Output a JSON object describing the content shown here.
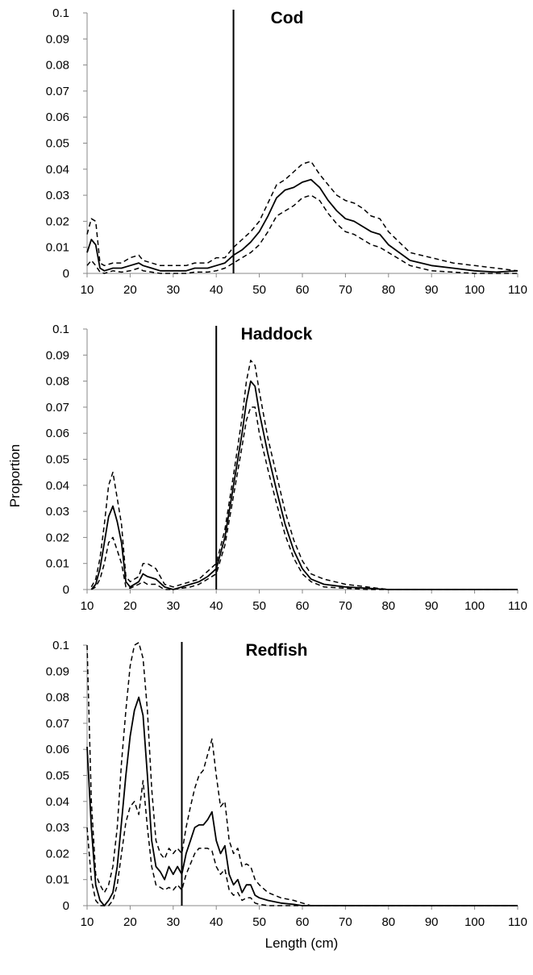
{
  "ylabel": "Proportion",
  "xlabel": "Length (cm)",
  "chart_data": [
    {
      "type": "line",
      "title": "Cod",
      "xlim": [
        10,
        110
      ],
      "ylim": [
        0,
        0.1
      ],
      "xticks": [
        "10",
        "20",
        "30",
        "40",
        "50",
        "60",
        "70",
        "80",
        "90",
        "100",
        "110"
      ],
      "yticks": [
        "0",
        "0.01",
        "0.02",
        "0.03",
        "0.04",
        "0.05",
        "0.06",
        "0.07",
        "0.08",
        "0.09",
        "0.1"
      ],
      "vline_x": 44,
      "series": [
        {
          "style": "solid",
          "x": [
            10,
            11,
            12,
            13,
            14,
            16,
            18,
            20,
            22,
            23,
            25,
            27,
            30,
            33,
            35,
            38,
            40,
            42,
            44,
            46,
            48,
            50,
            52,
            54,
            56,
            58,
            60,
            62,
            64,
            66,
            68,
            70,
            72,
            74,
            76,
            78,
            80,
            85,
            90,
            95,
            100,
            105,
            110
          ],
          "y": [
            0.008,
            0.013,
            0.011,
            0.002,
            0.001,
            0.002,
            0.002,
            0.003,
            0.004,
            0.003,
            0.002,
            0.001,
            0.001,
            0.001,
            0.002,
            0.002,
            0.003,
            0.004,
            0.007,
            0.009,
            0.012,
            0.016,
            0.022,
            0.029,
            0.032,
            0.033,
            0.035,
            0.036,
            0.033,
            0.028,
            0.024,
            0.021,
            0.02,
            0.018,
            0.016,
            0.015,
            0.011,
            0.005,
            0.003,
            0.002,
            0.001,
            0.0005,
            0.001
          ]
        },
        {
          "style": "dashed",
          "x": [
            10,
            11,
            12,
            13,
            14,
            16,
            18,
            20,
            22,
            23,
            25,
            27,
            30,
            33,
            35,
            38,
            40,
            42,
            44,
            46,
            48,
            50,
            52,
            54,
            56,
            58,
            60,
            62,
            64,
            66,
            68,
            70,
            72,
            74,
            76,
            78,
            80,
            85,
            90,
            95,
            100,
            105,
            110
          ],
          "y": [
            0.015,
            0.021,
            0.02,
            0.004,
            0.003,
            0.004,
            0.004,
            0.006,
            0.007,
            0.005,
            0.004,
            0.003,
            0.003,
            0.003,
            0.004,
            0.004,
            0.006,
            0.006,
            0.01,
            0.013,
            0.016,
            0.02,
            0.027,
            0.034,
            0.036,
            0.039,
            0.042,
            0.043,
            0.038,
            0.034,
            0.03,
            0.028,
            0.027,
            0.025,
            0.022,
            0.021,
            0.016,
            0.008,
            0.006,
            0.004,
            0.003,
            0.002,
            0.001
          ]
        },
        {
          "style": "dashed",
          "x": [
            10,
            11,
            12,
            13,
            14,
            16,
            18,
            20,
            22,
            23,
            25,
            27,
            30,
            33,
            35,
            38,
            40,
            42,
            44,
            46,
            48,
            50,
            52,
            54,
            56,
            58,
            60,
            62,
            64,
            66,
            68,
            70,
            72,
            74,
            76,
            78,
            80,
            85,
            90,
            95,
            100,
            105,
            110
          ],
          "y": [
            0.003,
            0.005,
            0.003,
            0.0005,
            0.0,
            0.001,
            0.0005,
            0.001,
            0.002,
            0.001,
            0.0005,
            0.0,
            0.0,
            0.0,
            0.0005,
            0.0005,
            0.001,
            0.002,
            0.004,
            0.006,
            0.008,
            0.011,
            0.016,
            0.022,
            0.024,
            0.026,
            0.029,
            0.03,
            0.028,
            0.023,
            0.019,
            0.016,
            0.015,
            0.013,
            0.011,
            0.01,
            0.008,
            0.003,
            0.001,
            0.0005,
            0.0,
            0.0,
            0.0
          ]
        }
      ]
    },
    {
      "type": "line",
      "title": "Haddock",
      "xlim": [
        10,
        110
      ],
      "ylim": [
        0,
        0.1
      ],
      "xticks": [
        "10",
        "20",
        "30",
        "40",
        "50",
        "60",
        "70",
        "80",
        "90",
        "100",
        "110"
      ],
      "yticks": [
        "0",
        "0.01",
        "0.02",
        "0.03",
        "0.04",
        "0.05",
        "0.06",
        "0.07",
        "0.08",
        "0.09",
        "0.1"
      ],
      "vline_x": 40,
      "series": [
        {
          "style": "solid",
          "x": [
            11,
            12,
            13,
            14,
            15,
            16,
            17,
            18,
            19,
            20,
            22,
            23,
            24,
            26,
            28,
            30,
            32,
            34,
            36,
            38,
            40,
            42,
            44,
            46,
            47,
            48,
            49,
            50,
            52,
            54,
            56,
            58,
            60,
            62,
            65,
            70,
            75,
            80,
            90,
            100,
            110
          ],
          "y": [
            0.0,
            0.002,
            0.008,
            0.018,
            0.028,
            0.032,
            0.026,
            0.018,
            0.003,
            0.001,
            0.003,
            0.006,
            0.005,
            0.004,
            0.001,
            0.0,
            0.001,
            0.002,
            0.003,
            0.005,
            0.008,
            0.02,
            0.04,
            0.06,
            0.072,
            0.08,
            0.078,
            0.068,
            0.052,
            0.038,
            0.025,
            0.015,
            0.008,
            0.004,
            0.002,
            0.001,
            0.0005,
            0.0,
            0.0,
            0.0,
            0.0
          ]
        },
        {
          "style": "dashed",
          "x": [
            11,
            12,
            13,
            14,
            15,
            16,
            17,
            18,
            19,
            20,
            22,
            23,
            24,
            26,
            28,
            30,
            32,
            34,
            36,
            38,
            40,
            42,
            44,
            46,
            47,
            48,
            49,
            50,
            52,
            54,
            56,
            58,
            60,
            62,
            65,
            70,
            75,
            80,
            90,
            100,
            110
          ],
          "y": [
            0.001,
            0.004,
            0.012,
            0.025,
            0.04,
            0.045,
            0.035,
            0.025,
            0.005,
            0.003,
            0.005,
            0.01,
            0.01,
            0.008,
            0.002,
            0.001,
            0.002,
            0.003,
            0.004,
            0.007,
            0.01,
            0.023,
            0.044,
            0.066,
            0.08,
            0.088,
            0.086,
            0.076,
            0.058,
            0.044,
            0.03,
            0.019,
            0.011,
            0.006,
            0.004,
            0.002,
            0.001,
            0.0,
            0.0,
            0.0,
            0.0
          ]
        },
        {
          "style": "dashed",
          "x": [
            11,
            12,
            13,
            14,
            15,
            16,
            17,
            18,
            19,
            20,
            22,
            23,
            24,
            26,
            28,
            30,
            32,
            34,
            36,
            38,
            40,
            42,
            44,
            46,
            47,
            48,
            49,
            50,
            52,
            54,
            56,
            58,
            60,
            62,
            65,
            70,
            75,
            80,
            90,
            100,
            110
          ],
          "y": [
            0.0,
            0.001,
            0.004,
            0.01,
            0.018,
            0.02,
            0.015,
            0.01,
            0.001,
            0.0005,
            0.002,
            0.003,
            0.002,
            0.002,
            0.0,
            0.0,
            0.0005,
            0.001,
            0.002,
            0.004,
            0.006,
            0.017,
            0.036,
            0.055,
            0.065,
            0.07,
            0.07,
            0.06,
            0.046,
            0.033,
            0.021,
            0.012,
            0.006,
            0.003,
            0.001,
            0.0005,
            0.0,
            0.0,
            0.0,
            0.0,
            0.0
          ]
        }
      ]
    },
    {
      "type": "line",
      "title": "Redfish",
      "xlim": [
        10,
        110
      ],
      "ylim": [
        0,
        0.1
      ],
      "xticks": [
        "10",
        "20",
        "30",
        "40",
        "50",
        "60",
        "70",
        "80",
        "90",
        "100",
        "110"
      ],
      "yticks": [
        "0",
        "0.01",
        "0.02",
        "0.03",
        "0.04",
        "0.05",
        "0.06",
        "0.07",
        "0.08",
        "0.09",
        "0.1"
      ],
      "vline_x": 32,
      "series": [
        {
          "style": "solid",
          "x": [
            10,
            11,
            12,
            13,
            14,
            15,
            16,
            17,
            18,
            19,
            20,
            21,
            22,
            23,
            24,
            25,
            26,
            27,
            28,
            29,
            30,
            31,
            32,
            33,
            34,
            35,
            36,
            37,
            38,
            39,
            40,
            41,
            42,
            43,
            44,
            45,
            46,
            47,
            48,
            49,
            50,
            52,
            55,
            58,
            60,
            62,
            65,
            70,
            80,
            90,
            100,
            110
          ],
          "y": [
            0.061,
            0.03,
            0.008,
            0.002,
            0.0,
            0.002,
            0.005,
            0.015,
            0.032,
            0.05,
            0.065,
            0.075,
            0.08,
            0.073,
            0.05,
            0.025,
            0.015,
            0.013,
            0.01,
            0.015,
            0.012,
            0.015,
            0.012,
            0.02,
            0.025,
            0.03,
            0.031,
            0.031,
            0.033,
            0.036,
            0.025,
            0.02,
            0.023,
            0.012,
            0.008,
            0.01,
            0.005,
            0.008,
            0.008,
            0.004,
            0.003,
            0.002,
            0.001,
            0.0005,
            0.0,
            0.0,
            0.0,
            0.0,
            0.0,
            0.0,
            0.0,
            0.0
          ]
        },
        {
          "style": "dashed",
          "x": [
            10,
            11,
            12,
            13,
            14,
            15,
            16,
            17,
            18,
            19,
            20,
            21,
            22,
            23,
            24,
            25,
            26,
            27,
            28,
            29,
            30,
            31,
            32,
            33,
            34,
            35,
            36,
            37,
            38,
            39,
            40,
            41,
            42,
            43,
            44,
            45,
            46,
            47,
            48,
            49,
            50,
            52,
            55,
            58,
            60,
            62,
            65,
            70,
            80,
            90,
            100,
            110
          ],
          "y": [
            0.1,
            0.04,
            0.012,
            0.008,
            0.005,
            0.008,
            0.015,
            0.03,
            0.055,
            0.075,
            0.092,
            0.1,
            0.101,
            0.095,
            0.075,
            0.045,
            0.025,
            0.02,
            0.018,
            0.022,
            0.02,
            0.022,
            0.02,
            0.03,
            0.038,
            0.045,
            0.05,
            0.052,
            0.058,
            0.064,
            0.05,
            0.038,
            0.04,
            0.025,
            0.02,
            0.022,
            0.015,
            0.016,
            0.015,
            0.01,
            0.008,
            0.005,
            0.003,
            0.002,
            0.001,
            0.0,
            0.0,
            0.0,
            0.0,
            0.0,
            0.0,
            0.0
          ]
        },
        {
          "style": "dashed",
          "x": [
            10,
            11,
            12,
            13,
            14,
            15,
            16,
            17,
            18,
            19,
            20,
            21,
            22,
            23,
            24,
            25,
            26,
            27,
            28,
            29,
            30,
            31,
            32,
            33,
            34,
            35,
            36,
            37,
            38,
            39,
            40,
            41,
            42,
            43,
            44,
            45,
            46,
            47,
            48,
            49,
            50,
            52,
            55,
            58,
            60,
            62,
            65,
            70,
            80,
            90,
            100,
            110
          ],
          "y": [
            0.03,
            0.01,
            0.002,
            0.0,
            0.0,
            0.0,
            0.002,
            0.008,
            0.02,
            0.032,
            0.038,
            0.04,
            0.035,
            0.048,
            0.03,
            0.015,
            0.008,
            0.007,
            0.006,
            0.007,
            0.006,
            0.008,
            0.006,
            0.012,
            0.016,
            0.02,
            0.022,
            0.022,
            0.022,
            0.021,
            0.015,
            0.012,
            0.014,
            0.006,
            0.004,
            0.005,
            0.002,
            0.003,
            0.003,
            0.001,
            0.0005,
            0.0,
            0.0,
            0.0,
            0.0,
            0.0,
            0.0,
            0.0,
            0.0,
            0.0,
            0.0,
            0.0
          ]
        }
      ]
    }
  ]
}
